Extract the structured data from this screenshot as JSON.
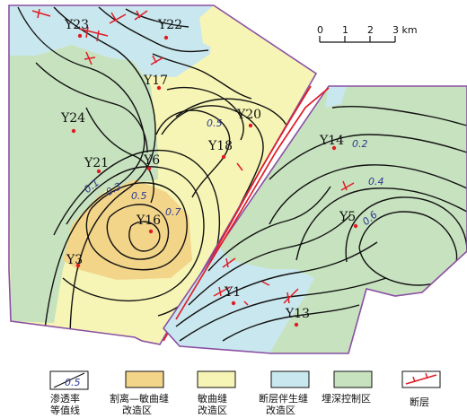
{
  "scale_bar": {
    "ticks": [
      "0",
      "1",
      "2",
      "3 km"
    ]
  },
  "wells": [
    {
      "name": "Y23"
    },
    {
      "name": "Y22"
    },
    {
      "name": "Y17"
    },
    {
      "name": "Y24"
    },
    {
      "name": "Y20"
    },
    {
      "name": "Y18"
    },
    {
      "name": "Y21"
    },
    {
      "name": "Y6"
    },
    {
      "name": "Y16"
    },
    {
      "name": "Y3"
    },
    {
      "name": "Y14"
    },
    {
      "name": "Y5"
    },
    {
      "name": "Y1"
    },
    {
      "name": "Y13"
    }
  ],
  "contour_labels": [
    "0.1",
    "0.3",
    "0.5",
    "0.7",
    "0.5",
    "0.2",
    "0.4",
    "0.6"
  ],
  "legend": {
    "items": [
      {
        "label": "渗透率\n等值线",
        "swatch": "contour"
      },
      {
        "label": "割离—敏曲缝\n改造区",
        "swatch": "#f3d58a"
      },
      {
        "label": "敏曲缝\n改造区",
        "swatch": "#f6f5b5"
      },
      {
        "label": "断层伴生缝\n改造区",
        "swatch": "#c9e7ee"
      },
      {
        "label": "埋深控制区",
        "swatch": "#c7e2bf"
      },
      {
        "label": "断层",
        "swatch": "fault"
      }
    ],
    "contour_value": "0.5"
  },
  "colors": {
    "isolation_zone": "#f3d58a",
    "curved_zone": "#f6f5b5",
    "fault_zone": "#c9e7ee",
    "burial_zone": "#c7e2bf",
    "boundary": "#8a4fa3",
    "fault": "#e01b24",
    "contour": "#111111",
    "contour_label": "#2b3a8f"
  }
}
